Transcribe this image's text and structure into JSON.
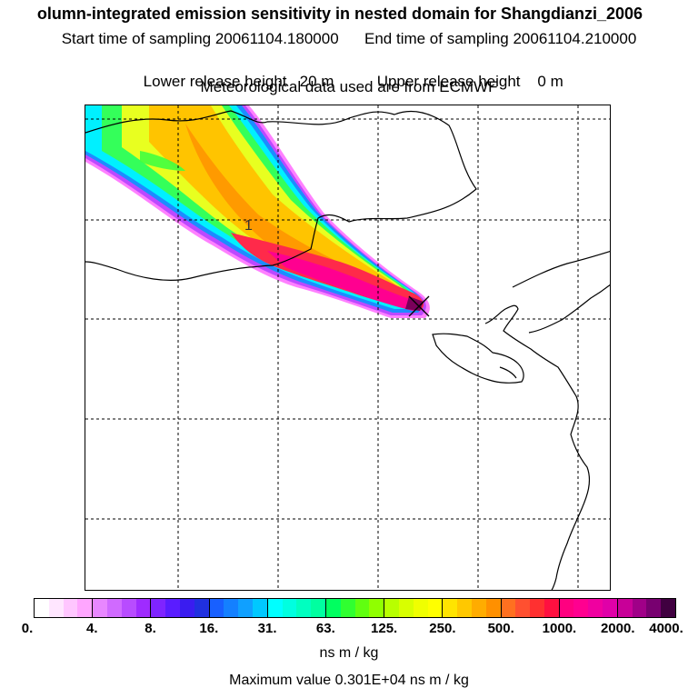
{
  "header": {
    "title": "olumn-integrated emission sensitivity in nested domain for Shangdianzi_2006",
    "start_time": "Start time of sampling 20061104.180000",
    "end_time": "End time of sampling 20061104.210000",
    "lower_release": "Lower release height   20 m",
    "upper_release": "Upper release height    0 m",
    "met_data": "Meteorological data used are from ECMWF"
  },
  "map": {
    "release_marker_label": "1",
    "plume_colors": [
      "#ff55ff",
      "#c040ff",
      "#4060ff",
      "#00c0ff",
      "#00ffd0",
      "#80ff40",
      "#ffee00",
      "#ffb000",
      "#ff2050",
      "#ff0090",
      "#7a005a"
    ]
  },
  "colorbar": {
    "segments": [
      [
        "#ffffff",
        "#ffe6ff",
        "#ffc6ff",
        "#ffa6ff"
      ],
      [
        "#e887ff",
        "#d06aff",
        "#b84cff",
        "#9f2bff"
      ],
      [
        "#7f24ff",
        "#5a1cff",
        "#3a1cf0",
        "#2030e0"
      ],
      [
        "#1860ff",
        "#1480ff",
        "#10a0ff",
        "#00c8ff"
      ],
      [
        "#00ffff",
        "#00ffe0",
        "#00ffc0",
        "#00ffa0"
      ],
      [
        "#00ff60",
        "#30ff30",
        "#60ff10",
        "#90ff00"
      ],
      [
        "#b8ff00",
        "#d8ff00",
        "#f0ff00",
        "#ffff00"
      ],
      [
        "#ffe400",
        "#ffc800",
        "#ffac00",
        "#ff9000"
      ],
      [
        "#ff7020",
        "#ff5030",
        "#ff3030",
        "#ff1040"
      ],
      [
        "#ff0080",
        "#ff0090",
        "#f000a0",
        "#e000a8"
      ],
      [
        "#c80098",
        "#a00088",
        "#780070",
        "#400040"
      ]
    ],
    "tick_labels": [
      "0.",
      "4.",
      "8.",
      "16.",
      "31.",
      "63.",
      "125.",
      "250.",
      "500.",
      "1000.",
      "2000.",
      "4000."
    ],
    "units": "ns m / kg"
  },
  "footer": {
    "max_value": "Maximum value  0.301E+04 ns m / kg"
  }
}
